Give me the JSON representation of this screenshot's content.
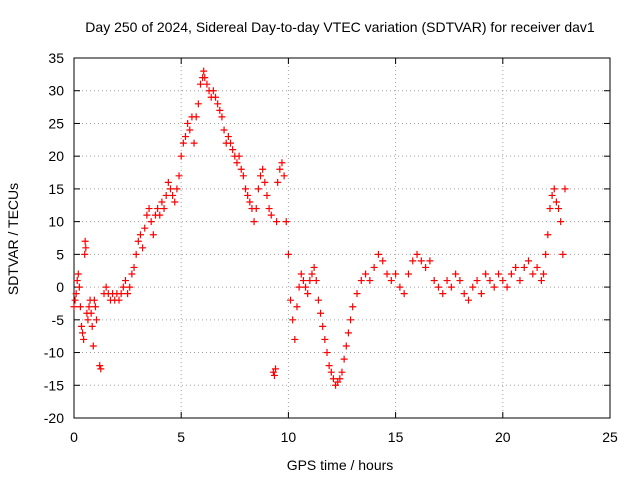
{
  "chart_data": {
    "type": "scatter",
    "title": "Day 250 of 2024, Sidereal Day-to-day VTEC variation (SDTVAR) for receiver dav1",
    "xlabel": "GPS time / hours",
    "ylabel": "SDTVAR / TECUs",
    "xlim": [
      0,
      25
    ],
    "ylim": [
      -20,
      35
    ],
    "xticks": [
      0,
      5,
      10,
      15,
      20,
      25
    ],
    "yticks": [
      -20,
      -15,
      -10,
      -5,
      0,
      5,
      10,
      15,
      20,
      25,
      30,
      35
    ],
    "grid": true,
    "marker": "+",
    "colors": {
      "series": "#ff0000",
      "grid": "#a0a0a0",
      "axis": "#000000"
    },
    "series": [
      {
        "name": "dav1",
        "color": "#ff0000",
        "points": [
          [
            0.0,
            -3
          ],
          [
            0.05,
            -2
          ],
          [
            0.1,
            -1
          ],
          [
            0.15,
            1
          ],
          [
            0.2,
            2
          ],
          [
            0.25,
            0
          ],
          [
            0.3,
            -3
          ],
          [
            0.35,
            -6
          ],
          [
            0.4,
            -7
          ],
          [
            0.45,
            -8
          ],
          [
            0.5,
            5
          ],
          [
            0.52,
            7
          ],
          [
            0.55,
            6
          ],
          [
            0.6,
            -4
          ],
          [
            0.65,
            -5
          ],
          [
            0.7,
            -3
          ],
          [
            0.75,
            -2
          ],
          [
            0.8,
            -4
          ],
          [
            0.85,
            -6
          ],
          [
            0.9,
            -9
          ],
          [
            0.95,
            -2
          ],
          [
            1.0,
            -3
          ],
          [
            1.05,
            -5
          ],
          [
            1.2,
            -12
          ],
          [
            1.25,
            -12.5
          ],
          [
            1.4,
            -1
          ],
          [
            1.5,
            0
          ],
          [
            1.6,
            -1
          ],
          [
            1.7,
            -2
          ],
          [
            1.8,
            -1
          ],
          [
            1.9,
            -2
          ],
          [
            2.0,
            -1
          ],
          [
            2.1,
            -2
          ],
          [
            2.2,
            -1
          ],
          [
            2.3,
            0
          ],
          [
            2.4,
            1
          ],
          [
            2.5,
            -1
          ],
          [
            2.6,
            0
          ],
          [
            2.7,
            2
          ],
          [
            2.8,
            3
          ],
          [
            2.9,
            5
          ],
          [
            3.0,
            7
          ],
          [
            3.1,
            8
          ],
          [
            3.2,
            6
          ],
          [
            3.3,
            9
          ],
          [
            3.4,
            11
          ],
          [
            3.5,
            12
          ],
          [
            3.6,
            10
          ],
          [
            3.7,
            8
          ],
          [
            3.8,
            11
          ],
          [
            3.9,
            12
          ],
          [
            4.0,
            11
          ],
          [
            4.1,
            13
          ],
          [
            4.2,
            12
          ],
          [
            4.3,
            14
          ],
          [
            4.4,
            16
          ],
          [
            4.5,
            15
          ],
          [
            4.6,
            14
          ],
          [
            4.7,
            13
          ],
          [
            4.8,
            15
          ],
          [
            4.9,
            17
          ],
          [
            5.0,
            20
          ],
          [
            5.1,
            22
          ],
          [
            5.2,
            23
          ],
          [
            5.3,
            25
          ],
          [
            5.4,
            24
          ],
          [
            5.5,
            26
          ],
          [
            5.6,
            22
          ],
          [
            5.7,
            26
          ],
          [
            5.8,
            28
          ],
          [
            5.9,
            31
          ],
          [
            6.0,
            32
          ],
          [
            6.05,
            33
          ],
          [
            6.1,
            32
          ],
          [
            6.2,
            31
          ],
          [
            6.3,
            30
          ],
          [
            6.4,
            29
          ],
          [
            6.5,
            30
          ],
          [
            6.6,
            29
          ],
          [
            6.7,
            28
          ],
          [
            6.8,
            27
          ],
          [
            6.9,
            26
          ],
          [
            7.0,
            24
          ],
          [
            7.1,
            22
          ],
          [
            7.2,
            23
          ],
          [
            7.3,
            22
          ],
          [
            7.4,
            21
          ],
          [
            7.5,
            20
          ],
          [
            7.6,
            19
          ],
          [
            7.7,
            20
          ],
          [
            7.8,
            18
          ],
          [
            7.9,
            17
          ],
          [
            8.0,
            15
          ],
          [
            8.1,
            14
          ],
          [
            8.2,
            13
          ],
          [
            8.3,
            12
          ],
          [
            8.4,
            10
          ],
          [
            8.5,
            12
          ],
          [
            8.6,
            15
          ],
          [
            8.7,
            17
          ],
          [
            8.8,
            18
          ],
          [
            8.9,
            16
          ],
          [
            9.0,
            14
          ],
          [
            9.1,
            12
          ],
          [
            9.2,
            11
          ],
          [
            9.3,
            -13
          ],
          [
            9.35,
            -13.5
          ],
          [
            9.4,
            -12.5
          ],
          [
            9.45,
            10
          ],
          [
            9.5,
            16
          ],
          [
            9.6,
            18
          ],
          [
            9.7,
            19
          ],
          [
            9.8,
            17
          ],
          [
            9.9,
            10
          ],
          [
            10.0,
            5
          ],
          [
            10.1,
            -2
          ],
          [
            10.2,
            -5
          ],
          [
            10.3,
            -8
          ],
          [
            10.4,
            -3
          ],
          [
            10.5,
            0
          ],
          [
            10.6,
            2
          ],
          [
            10.7,
            1
          ],
          [
            10.8,
            0
          ],
          [
            10.9,
            -1
          ],
          [
            11.0,
            1
          ],
          [
            11.1,
            2
          ],
          [
            11.2,
            3
          ],
          [
            11.3,
            1
          ],
          [
            11.4,
            -2
          ],
          [
            11.5,
            -4
          ],
          [
            11.6,
            -6
          ],
          [
            11.7,
            -8
          ],
          [
            11.8,
            -10
          ],
          [
            11.9,
            -12
          ],
          [
            12.0,
            -13
          ],
          [
            12.1,
            -14
          ],
          [
            12.2,
            -15
          ],
          [
            12.3,
            -14.5
          ],
          [
            12.4,
            -14
          ],
          [
            12.5,
            -13
          ],
          [
            12.6,
            -11
          ],
          [
            12.7,
            -9
          ],
          [
            12.8,
            -7
          ],
          [
            12.9,
            -5
          ],
          [
            13.0,
            -3
          ],
          [
            13.2,
            -1
          ],
          [
            13.4,
            1
          ],
          [
            13.6,
            2
          ],
          [
            13.8,
            1
          ],
          [
            14.0,
            3
          ],
          [
            14.2,
            5
          ],
          [
            14.4,
            4
          ],
          [
            14.6,
            2
          ],
          [
            14.8,
            1
          ],
          [
            15.0,
            2
          ],
          [
            15.2,
            0
          ],
          [
            15.4,
            -1
          ],
          [
            15.6,
            2
          ],
          [
            15.8,
            4
          ],
          [
            16.0,
            5
          ],
          [
            16.2,
            4
          ],
          [
            16.4,
            3
          ],
          [
            16.6,
            4
          ],
          [
            16.8,
            1
          ],
          [
            17.0,
            0
          ],
          [
            17.2,
            -1
          ],
          [
            17.4,
            1
          ],
          [
            17.6,
            0
          ],
          [
            17.8,
            2
          ],
          [
            18.0,
            1
          ],
          [
            18.2,
            -1
          ],
          [
            18.4,
            -2
          ],
          [
            18.6,
            0
          ],
          [
            18.8,
            1
          ],
          [
            19.0,
            -1
          ],
          [
            19.2,
            2
          ],
          [
            19.4,
            1
          ],
          [
            19.6,
            0
          ],
          [
            19.8,
            2
          ],
          [
            20.0,
            1
          ],
          [
            20.2,
            0
          ],
          [
            20.4,
            2
          ],
          [
            20.6,
            3
          ],
          [
            20.8,
            1
          ],
          [
            21.0,
            3
          ],
          [
            21.2,
            4
          ],
          [
            21.4,
            2
          ],
          [
            21.6,
            3
          ],
          [
            21.8,
            1
          ],
          [
            21.9,
            2
          ],
          [
            22.0,
            5
          ],
          [
            22.1,
            8
          ],
          [
            22.2,
            12
          ],
          [
            22.3,
            14
          ],
          [
            22.4,
            15
          ],
          [
            22.5,
            13
          ],
          [
            22.6,
            12
          ],
          [
            22.7,
            10
          ],
          [
            22.8,
            5
          ],
          [
            22.9,
            15
          ]
        ]
      }
    ]
  }
}
